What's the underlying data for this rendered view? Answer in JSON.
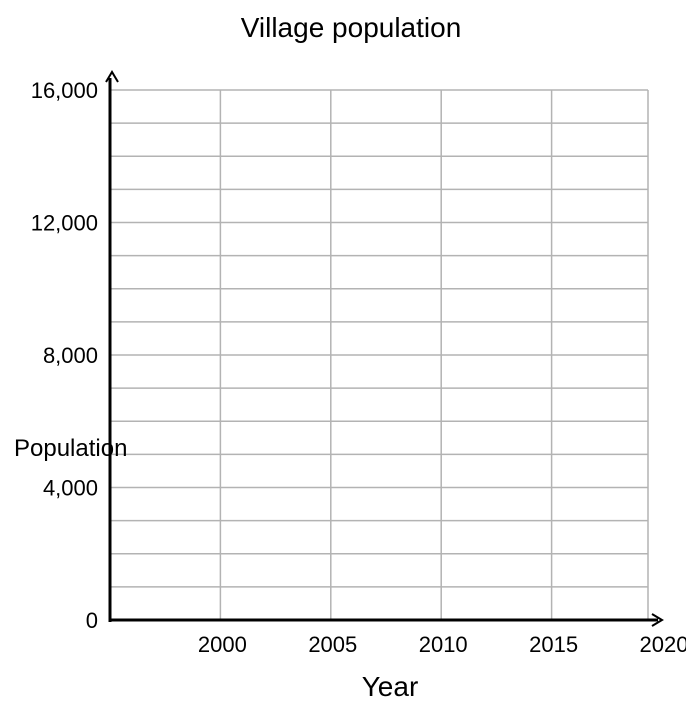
{
  "chart_data": {
    "type": "line",
    "title": "Village population",
    "xlabel": "Year",
    "ylabel": "Population",
    "x_ticks": [
      "2000",
      "2005",
      "2010",
      "2015",
      "2020"
    ],
    "y_ticks": [
      "0",
      "4,000",
      "8,000",
      "12,000",
      "16,000"
    ],
    "xlim": [
      1995,
      2020
    ],
    "ylim": [
      0,
      16000
    ],
    "y_minor_step": 1000,
    "grid": true,
    "series": []
  },
  "colors": {
    "grid": "#b3b3b3",
    "axis": "#000000"
  }
}
